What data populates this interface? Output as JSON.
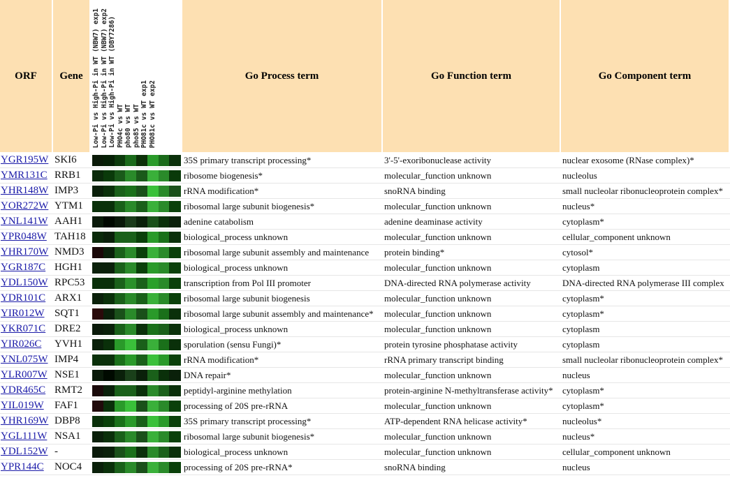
{
  "header": {
    "orf": "ORF",
    "gene": "Gene",
    "heatmap_labels": [
      "Low-Pi vs High-Pi in WT (NBW7) exp1",
      "Low-Pi vs High-Pi in WT (NBW7) exp2",
      "Low-Pi vs High-Pi in WT (DBY7286)",
      "PHO4c vs WT",
      "pho80 vs WT",
      "pho85 vs WT",
      "PHO81c vs WT exp1",
      "PHO81c vs WT exp2"
    ],
    "process": "Go Process term",
    "function": "Go Function term",
    "component": "Go Component term"
  },
  "rows": [
    {
      "orf": "YGR195W",
      "gene": "SKI6",
      "heatmap": [
        "#0a1a08",
        "#062006",
        "#0c3a0c",
        "#1a6a1a",
        "#0c3008",
        "#2a9a2a",
        "#1a6a1a",
        "#0a300a"
      ],
      "process": "35S primary transcript processing*",
      "function": "3'-5'-exoribonuclease activity",
      "component": "nuclear exosome (RNase complex)*"
    },
    {
      "orf": "YMR131C",
      "gene": "RRB1",
      "heatmap": [
        "#0a2a0a",
        "#0a3a0a",
        "#1a5a1a",
        "#2a8a2a",
        "#1a5a1a",
        "#3ab03a",
        "#2a8a2a",
        "#0a3a0a"
      ],
      "process": "ribosome biogenesis*",
      "function": "molecular_function unknown",
      "component": "nucleolus"
    },
    {
      "orf": "YHR148W",
      "gene": "IMP3",
      "heatmap": [
        "#0a200a",
        "#0a300a",
        "#1a601a",
        "#1a701a",
        "#1a501a",
        "#3ac03a",
        "#2a8a2a",
        "#1a501a"
      ],
      "process": "rRNA modification*",
      "function": "snoRNA binding",
      "component": "small nucleolar ribonucleoprotein complex*"
    },
    {
      "orf": "YOR272W",
      "gene": "YTM1",
      "heatmap": [
        "#0a300a",
        "#0a300a",
        "#1a601a",
        "#2a8a2a",
        "#1a601a",
        "#3ab03a",
        "#2a8a2a",
        "#0a400a"
      ],
      "process": "ribosomal large subunit biogenesis*",
      "function": "molecular_function unknown",
      "component": "nucleus*"
    },
    {
      "orf": "YNL141W",
      "gene": "AAH1",
      "heatmap": [
        "#0a1a0a",
        "#000800",
        "#0a180a",
        "#1a3a1a",
        "#0a200a",
        "#1a501a",
        "#0a300a",
        "#0a200a"
      ],
      "process": "adenine catabolism",
      "function": "adenine deaminase activity",
      "component": "cytoplasm*"
    },
    {
      "orf": "YPR048W",
      "gene": "TAH18",
      "heatmap": [
        "#0a2a0a",
        "#0a200a",
        "#1a601a",
        "#1a601a",
        "#0a400a",
        "#2a9a2a",
        "#1a701a",
        "#0a300a"
      ],
      "process": "biological_process unknown",
      "function": "molecular_function unknown",
      "component": "cellular_component unknown"
    },
    {
      "orf": "YHR170W",
      "gene": "NMD3",
      "heatmap": [
        "#1a0808",
        "#0a200a",
        "#1a601a",
        "#2a8a2a",
        "#0a400a",
        "#3ab03a",
        "#2a8a2a",
        "#0a400a"
      ],
      "process": "ribosomal large subunit assembly and maintenance",
      "function": "protein binding*",
      "component": "cytosol*"
    },
    {
      "orf": "YGR187C",
      "gene": "HGH1",
      "heatmap": [
        "#0a200a",
        "#0a200a",
        "#1a601a",
        "#2a8a2a",
        "#0a400a",
        "#2a9a2a",
        "#2a8a2a",
        "#0a400a"
      ],
      "process": "biological_process unknown",
      "function": "molecular_function unknown",
      "component": "cytoplasm"
    },
    {
      "orf": "YDL150W",
      "gene": "RPC53",
      "heatmap": [
        "#0a300a",
        "#0a300a",
        "#1a601a",
        "#2a902a",
        "#1a601a",
        "#2aa02a",
        "#2a8a2a",
        "#0a400a"
      ],
      "process": "transcription from Pol III promoter",
      "function": "DNA-directed RNA polymerase activity",
      "component": "DNA-directed RNA polymerase III complex"
    },
    {
      "orf": "YDR101C",
      "gene": "ARX1",
      "heatmap": [
        "#0a200a",
        "#0a300a",
        "#1a601a",
        "#2a8a2a",
        "#1a601a",
        "#3ab03a",
        "#2a8a2a",
        "#0a400a"
      ],
      "process": "ribosomal large subunit biogenesis",
      "function": "molecular_function unknown",
      "component": "cytoplasm*"
    },
    {
      "orf": "YIR012W",
      "gene": "SQT1",
      "heatmap": [
        "#2a0a0a",
        "#0a200a",
        "#1a501a",
        "#2a8a2a",
        "#1a501a",
        "#2a9a2a",
        "#1a701a",
        "#0a300a"
      ],
      "process": "ribosomal large subunit assembly and maintenance*",
      "function": "molecular_function unknown",
      "component": "cytoplasm*"
    },
    {
      "orf": "YKR071C",
      "gene": "DRE2",
      "heatmap": [
        "#0a1a0a",
        "#0a200a",
        "#1a601a",
        "#2a8a2a",
        "#0a300a",
        "#1a701a",
        "#1a601a",
        "#0a300a"
      ],
      "process": "biological_process unknown",
      "function": "molecular_function unknown",
      "component": "cytoplasm"
    },
    {
      "orf": "YIR026C",
      "gene": "YVH1",
      "heatmap": [
        "#0a200a",
        "#0a300a",
        "#2a9a2a",
        "#3ac03a",
        "#1a601a",
        "#3ab03a",
        "#1a701a",
        "#0a300a"
      ],
      "process": "sporulation (sensu Fungi)*",
      "function": "protein tyrosine phosphatase activity",
      "component": "cytoplasm"
    },
    {
      "orf": "YNL075W",
      "gene": "IMP4",
      "heatmap": [
        "#0a300a",
        "#0a300a",
        "#1a701a",
        "#2a9a2a",
        "#1a601a",
        "#3ac03a",
        "#2a9a2a",
        "#0a400a"
      ],
      "process": "rRNA modification*",
      "function": "rRNA primary transcript binding",
      "component": "small nucleolar ribonucleoprotein complex*"
    },
    {
      "orf": "YLR007W",
      "gene": "NSE1",
      "heatmap": [
        "#0a1a0a",
        "#000a00",
        "#0a200a",
        "#1a401a",
        "#0a200a",
        "#1a601a",
        "#0a300a",
        "#0a200a"
      ],
      "process": "DNA repair*",
      "function": "molecular_function unknown",
      "component": "nucleus"
    },
    {
      "orf": "YDR465C",
      "gene": "RMT2",
      "heatmap": [
        "#1a0a0a",
        "#0a200a",
        "#1a601a",
        "#1a601a",
        "#0a300a",
        "#2a8a2a",
        "#1a601a",
        "#0a300a"
      ],
      "process": "peptidyl-arginine methylation",
      "function": "protein-arginine N-methyltransferase activity*",
      "component": "cytoplasm*"
    },
    {
      "orf": "YIL019W",
      "gene": "FAF1",
      "heatmap": [
        "#200a0a",
        "#0a300a",
        "#2a9a2a",
        "#3ac03a",
        "#1a501a",
        "#3ab03a",
        "#2a8a2a",
        "#0a400a"
      ],
      "process": "processing of 20S pre-rRNA",
      "function": "molecular_function unknown",
      "component": "cytoplasm*"
    },
    {
      "orf": "YHR169W",
      "gene": "DBP8",
      "heatmap": [
        "#0a300a",
        "#0a400a",
        "#1a701a",
        "#2a9a2a",
        "#1a601a",
        "#3ac03a",
        "#2a9a2a",
        "#0a400a"
      ],
      "process": "35S primary transcript processing*",
      "function": "ATP-dependent RNA helicase activity*",
      "component": "nucleolus*"
    },
    {
      "orf": "YGL111W",
      "gene": "NSA1",
      "heatmap": [
        "#0a200a",
        "#0a300a",
        "#1a601a",
        "#2a8a2a",
        "#1a501a",
        "#3ab03a",
        "#2a8a2a",
        "#0a400a"
      ],
      "process": "ribosomal large subunit biogenesis*",
      "function": "molecular_function unknown",
      "component": "nucleus*"
    },
    {
      "orf": "YDL152W",
      "gene": "-",
      "heatmap": [
        "#0a1a0a",
        "#0a200a",
        "#1a501a",
        "#1a701a",
        "#0a300a",
        "#2a8a2a",
        "#1a601a",
        "#0a300a"
      ],
      "process": "biological_process unknown",
      "function": "molecular_function unknown",
      "component": "cellular_component unknown"
    },
    {
      "orf": "YPR144C",
      "gene": "NOC4",
      "heatmap": [
        "#0a200a",
        "#0a300a",
        "#1a601a",
        "#2a8a2a",
        "#1a501a",
        "#3ab03a",
        "#2a8a2a",
        "#0a400a"
      ],
      "process": "processing of 20S pre-rRNA*",
      "function": "snoRNA binding",
      "component": "nucleus"
    }
  ]
}
